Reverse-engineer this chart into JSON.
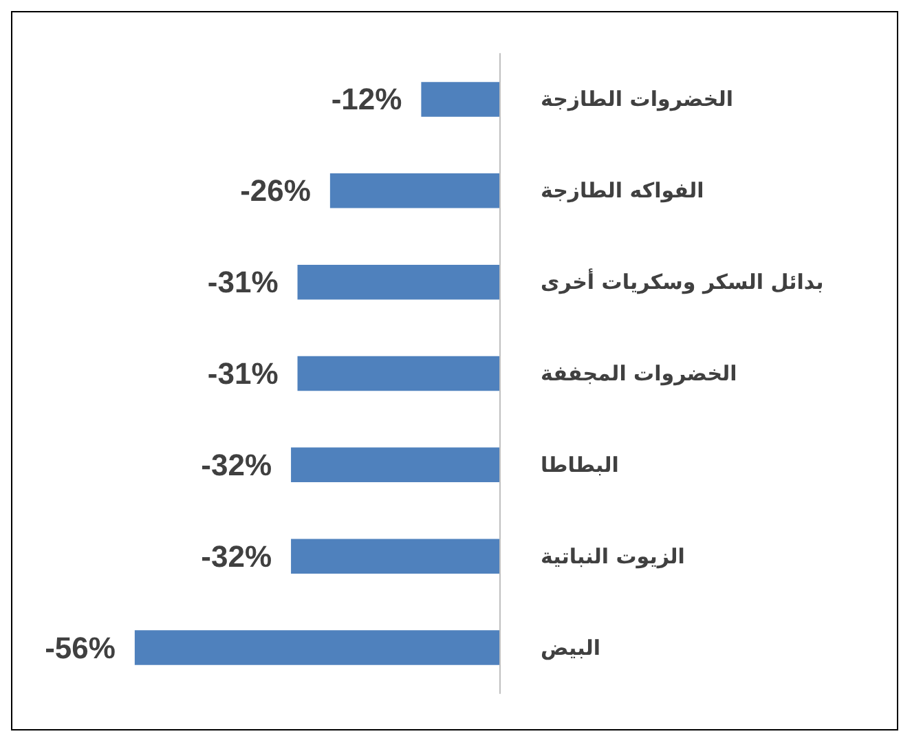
{
  "chart_data": {
    "type": "bar",
    "orientation": "horizontal",
    "categories": [
      "الخضروات الطازجة",
      "الفواكه الطازجة",
      "بدائل السكر وسكريات أخرى",
      "الخضروات المجففة",
      "البطاطا",
      "الزيوت النباتية",
      "البيض"
    ],
    "values": [
      -12,
      -26,
      -31,
      -31,
      -32,
      -32,
      -56
    ],
    "value_labels": [
      "-12%",
      "-26%",
      "-31%",
      "-31%",
      "-32%",
      "-32%",
      "-56%"
    ],
    "color": "#4f81bd",
    "grid": false
  }
}
